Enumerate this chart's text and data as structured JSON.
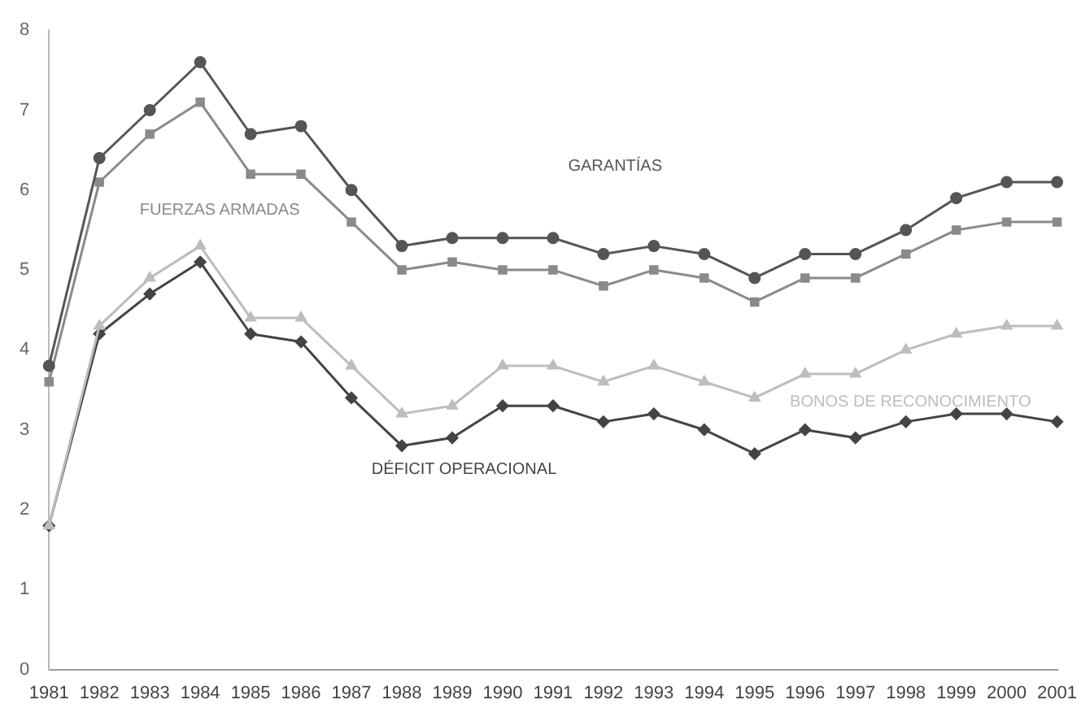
{
  "chart_data": {
    "type": "line",
    "categories": [
      "1981",
      "1982",
      "1983",
      "1984",
      "1985",
      "1986",
      "1987",
      "1988",
      "1989",
      "1990",
      "1991",
      "1992",
      "1993",
      "1994",
      "1995",
      "1996",
      "1997",
      "1998",
      "1999",
      "2000",
      "2001"
    ],
    "series": [
      {
        "name": "GARANTÍAS",
        "color": "#555555",
        "marker": "circle",
        "values": [
          3.8,
          6.4,
          7.0,
          7.6,
          6.7,
          6.8,
          6.0,
          5.3,
          5.4,
          5.4,
          5.4,
          5.2,
          5.3,
          5.2,
          4.9,
          5.2,
          5.2,
          5.5,
          5.9,
          6.1,
          6.1
        ]
      },
      {
        "name": "FUERZAS ARMADAS",
        "color": "#8a8a8a",
        "marker": "square",
        "values": [
          3.6,
          6.1,
          6.7,
          7.1,
          6.2,
          6.2,
          5.6,
          5.0,
          5.1,
          5.0,
          5.0,
          4.8,
          5.0,
          4.9,
          4.6,
          4.9,
          4.9,
          5.2,
          5.5,
          5.6,
          5.6
        ]
      },
      {
        "name": "BONOS DE RECONOCIMIENTO",
        "color": "#bdbdbd",
        "marker": "triangle",
        "values": [
          1.8,
          4.3,
          4.9,
          5.3,
          4.4,
          4.4,
          3.8,
          3.2,
          3.3,
          3.8,
          3.8,
          3.6,
          3.8,
          3.6,
          3.4,
          3.7,
          3.7,
          4.0,
          4.2,
          4.3,
          4.3
        ]
      },
      {
        "name": "DÉFICIT OPERACIONAL",
        "color": "#444444",
        "marker": "diamond",
        "values": [
          1.8,
          4.2,
          4.7,
          5.1,
          4.2,
          4.1,
          3.4,
          2.8,
          2.9,
          3.3,
          3.3,
          3.1,
          3.2,
          3.0,
          2.7,
          3.0,
          2.9,
          3.1,
          3.2,
          3.2,
          3.1
        ]
      }
    ],
    "ylim": [
      0,
      8
    ],
    "yticks": [
      0,
      1,
      2,
      3,
      4,
      5,
      6,
      7,
      8
    ],
    "grid": false,
    "legend": false
  }
}
